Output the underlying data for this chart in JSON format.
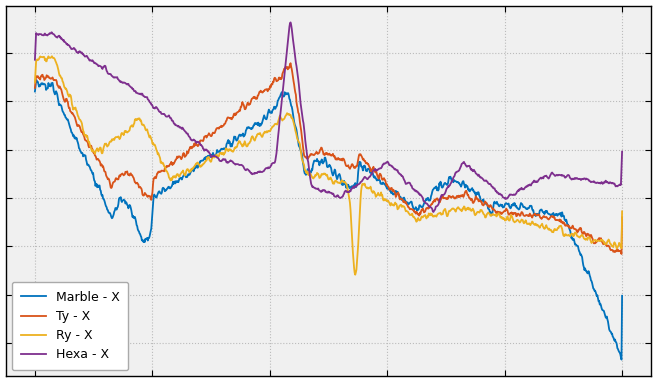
{
  "title": "",
  "background_color": "#ffffff",
  "axes_bg_color": "#f0f0f0",
  "grid_color": "#bbbbbb",
  "grid_style": "dotted",
  "line_colors": {
    "Marble - X": "#0072bd",
    "Ty - X": "#d95319",
    "Ry - X": "#edb120",
    "Hexa - X": "#7e2f8e"
  },
  "legend_labels": [
    "Marble - X",
    "Ty - X",
    "Ry - X",
    "Hexa - X"
  ],
  "legend_bg": "#ffffff",
  "legend_edge": "#aaaaaa",
  "figsize": [
    6.57,
    3.82
  ],
  "dpi": 100
}
